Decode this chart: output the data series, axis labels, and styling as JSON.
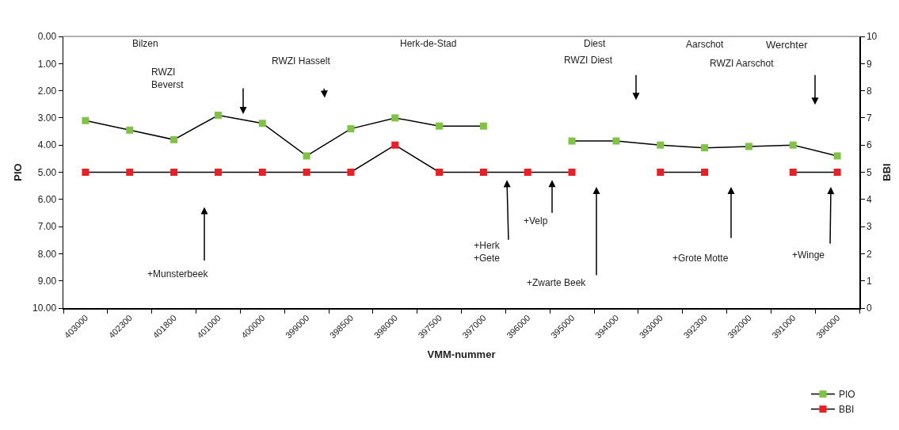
{
  "chart_data": {
    "type": "line",
    "xlabel": "VMM-nummer",
    "ylabel": "PIO",
    "y2label": "BBI",
    "categories": [
      "403000",
      "402300",
      "401800",
      "401000",
      "400000",
      "399000",
      "398500",
      "398000",
      "397500",
      "397000",
      "396000",
      "395000",
      "394000",
      "393000",
      "392300",
      "392000",
      "391000",
      "390000"
    ],
    "series": [
      {
        "name": "PIO",
        "color": "#80c342",
        "values": [
          3.1,
          3.45,
          3.8,
          2.9,
          3.2,
          4.4,
          3.4,
          3.0,
          3.3,
          3.3,
          null,
          3.85,
          3.85,
          4.0,
          4.1,
          4.05,
          4.0,
          4.4
        ]
      },
      {
        "name": "BBI",
        "color": "#ee1c25",
        "axis": "y2",
        "values": [
          5,
          5,
          5,
          5,
          5,
          5,
          5,
          6,
          5,
          5,
          5,
          5,
          null,
          5,
          5,
          null,
          5,
          5
        ]
      }
    ],
    "ylim": [
      10,
      0
    ],
    "yticks": [
      {
        "value": 0,
        "label": "0.00"
      },
      {
        "value": 1,
        "label": "1.00"
      },
      {
        "value": 2,
        "label": "2.00"
      },
      {
        "value": 3,
        "label": "3.00"
      },
      {
        "value": 4,
        "label": "4.00"
      },
      {
        "value": 5,
        "label": "5.00"
      },
      {
        "value": 6,
        "label": "6.00"
      },
      {
        "value": 7,
        "label": "7.00"
      },
      {
        "value": 8,
        "label": "8.00"
      },
      {
        "value": 9,
        "label": "9.00"
      },
      {
        "value": 10,
        "label": "10.00"
      }
    ],
    "y2lim": [
      0,
      10
    ],
    "y2ticks": [
      0,
      1,
      2,
      3,
      4,
      5,
      6,
      7,
      8,
      9,
      10
    ],
    "marker": "square",
    "line_style": "solid",
    "legend": "bottom right",
    "grid": false,
    "annotations": [
      "Bilzen",
      "RWZI\nBeverst",
      "RWZI Hasselt",
      "Herk-de-Stad",
      "Diest",
      "RWZI Diest",
      "Aarschot",
      "Werchter",
      "RWZI Aarschot",
      "+Munsterbeek",
      "+Herk\n+Gete",
      "+Velp",
      "+Zwarte Beek",
      "+Grote Motte",
      "+Winge"
    ]
  }
}
